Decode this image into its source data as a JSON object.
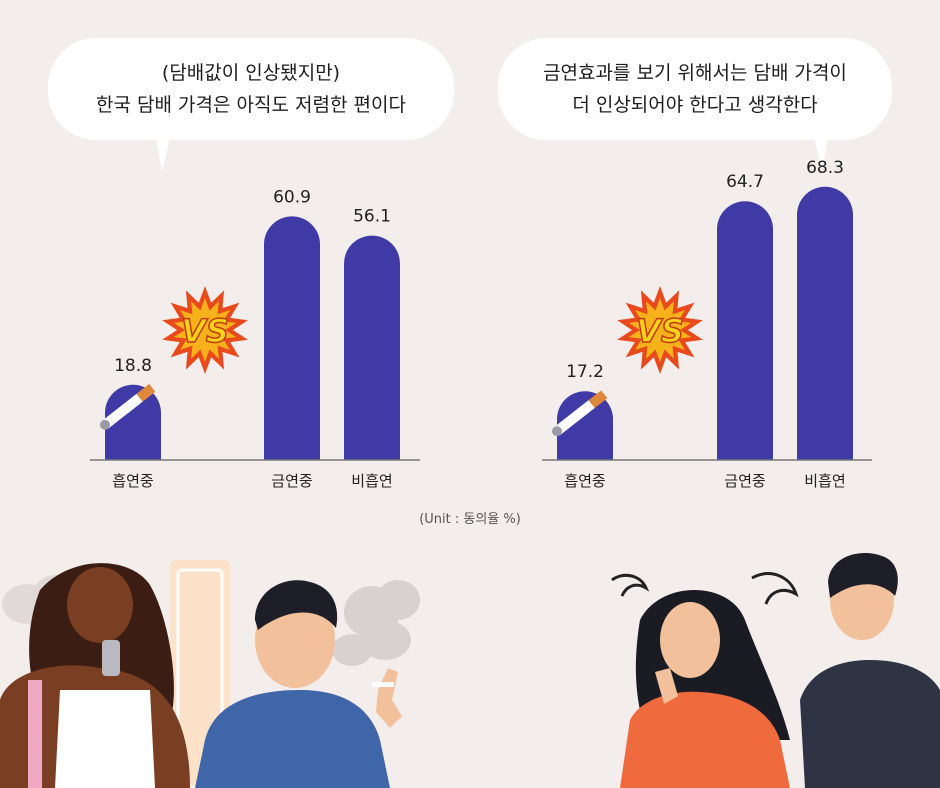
{
  "chart_data": [
    {
      "type": "bar",
      "title": "(담배값이 인상됐지만)\n한국 담배 가격은 아직도 저렴한 편이다",
      "title_lines": [
        "(담배값이 인상됐지만)",
        "한국 담배 가격은 아직도 저렴한 편이다"
      ],
      "categories": [
        "흡연중",
        "금연중",
        "비흡연"
      ],
      "values": [
        18.8,
        60.9,
        56.1
      ],
      "value_labels": [
        "18.8",
        "60.9",
        "56.1"
      ],
      "ylim": [
        0,
        100
      ],
      "color": "#3f3aa6",
      "badge": "VS"
    },
    {
      "type": "bar",
      "title": "금연효과를 보기 위해서는 담배 가격이\n더 인상되어야 한다고 생각한다",
      "title_lines": [
        "금연효과를 보기 위해서는 담배 가격이",
        "더 인상되어야 한다고 생각한다"
      ],
      "categories": [
        "흡연중",
        "금연중",
        "비흡연"
      ],
      "values": [
        17.2,
        64.7,
        68.3
      ],
      "value_labels": [
        "17.2",
        "64.7",
        "68.3"
      ],
      "ylim": [
        0,
        100
      ],
      "color": "#3f3aa6",
      "badge": "VS"
    }
  ],
  "unit": "(Unit : 동의율 %)",
  "colors": {
    "background": "#f3eeec",
    "bar": "#3f3aa6",
    "axis": "#777777",
    "burst_outer": "#e84a1c",
    "burst_inner": "#f6b21b"
  }
}
